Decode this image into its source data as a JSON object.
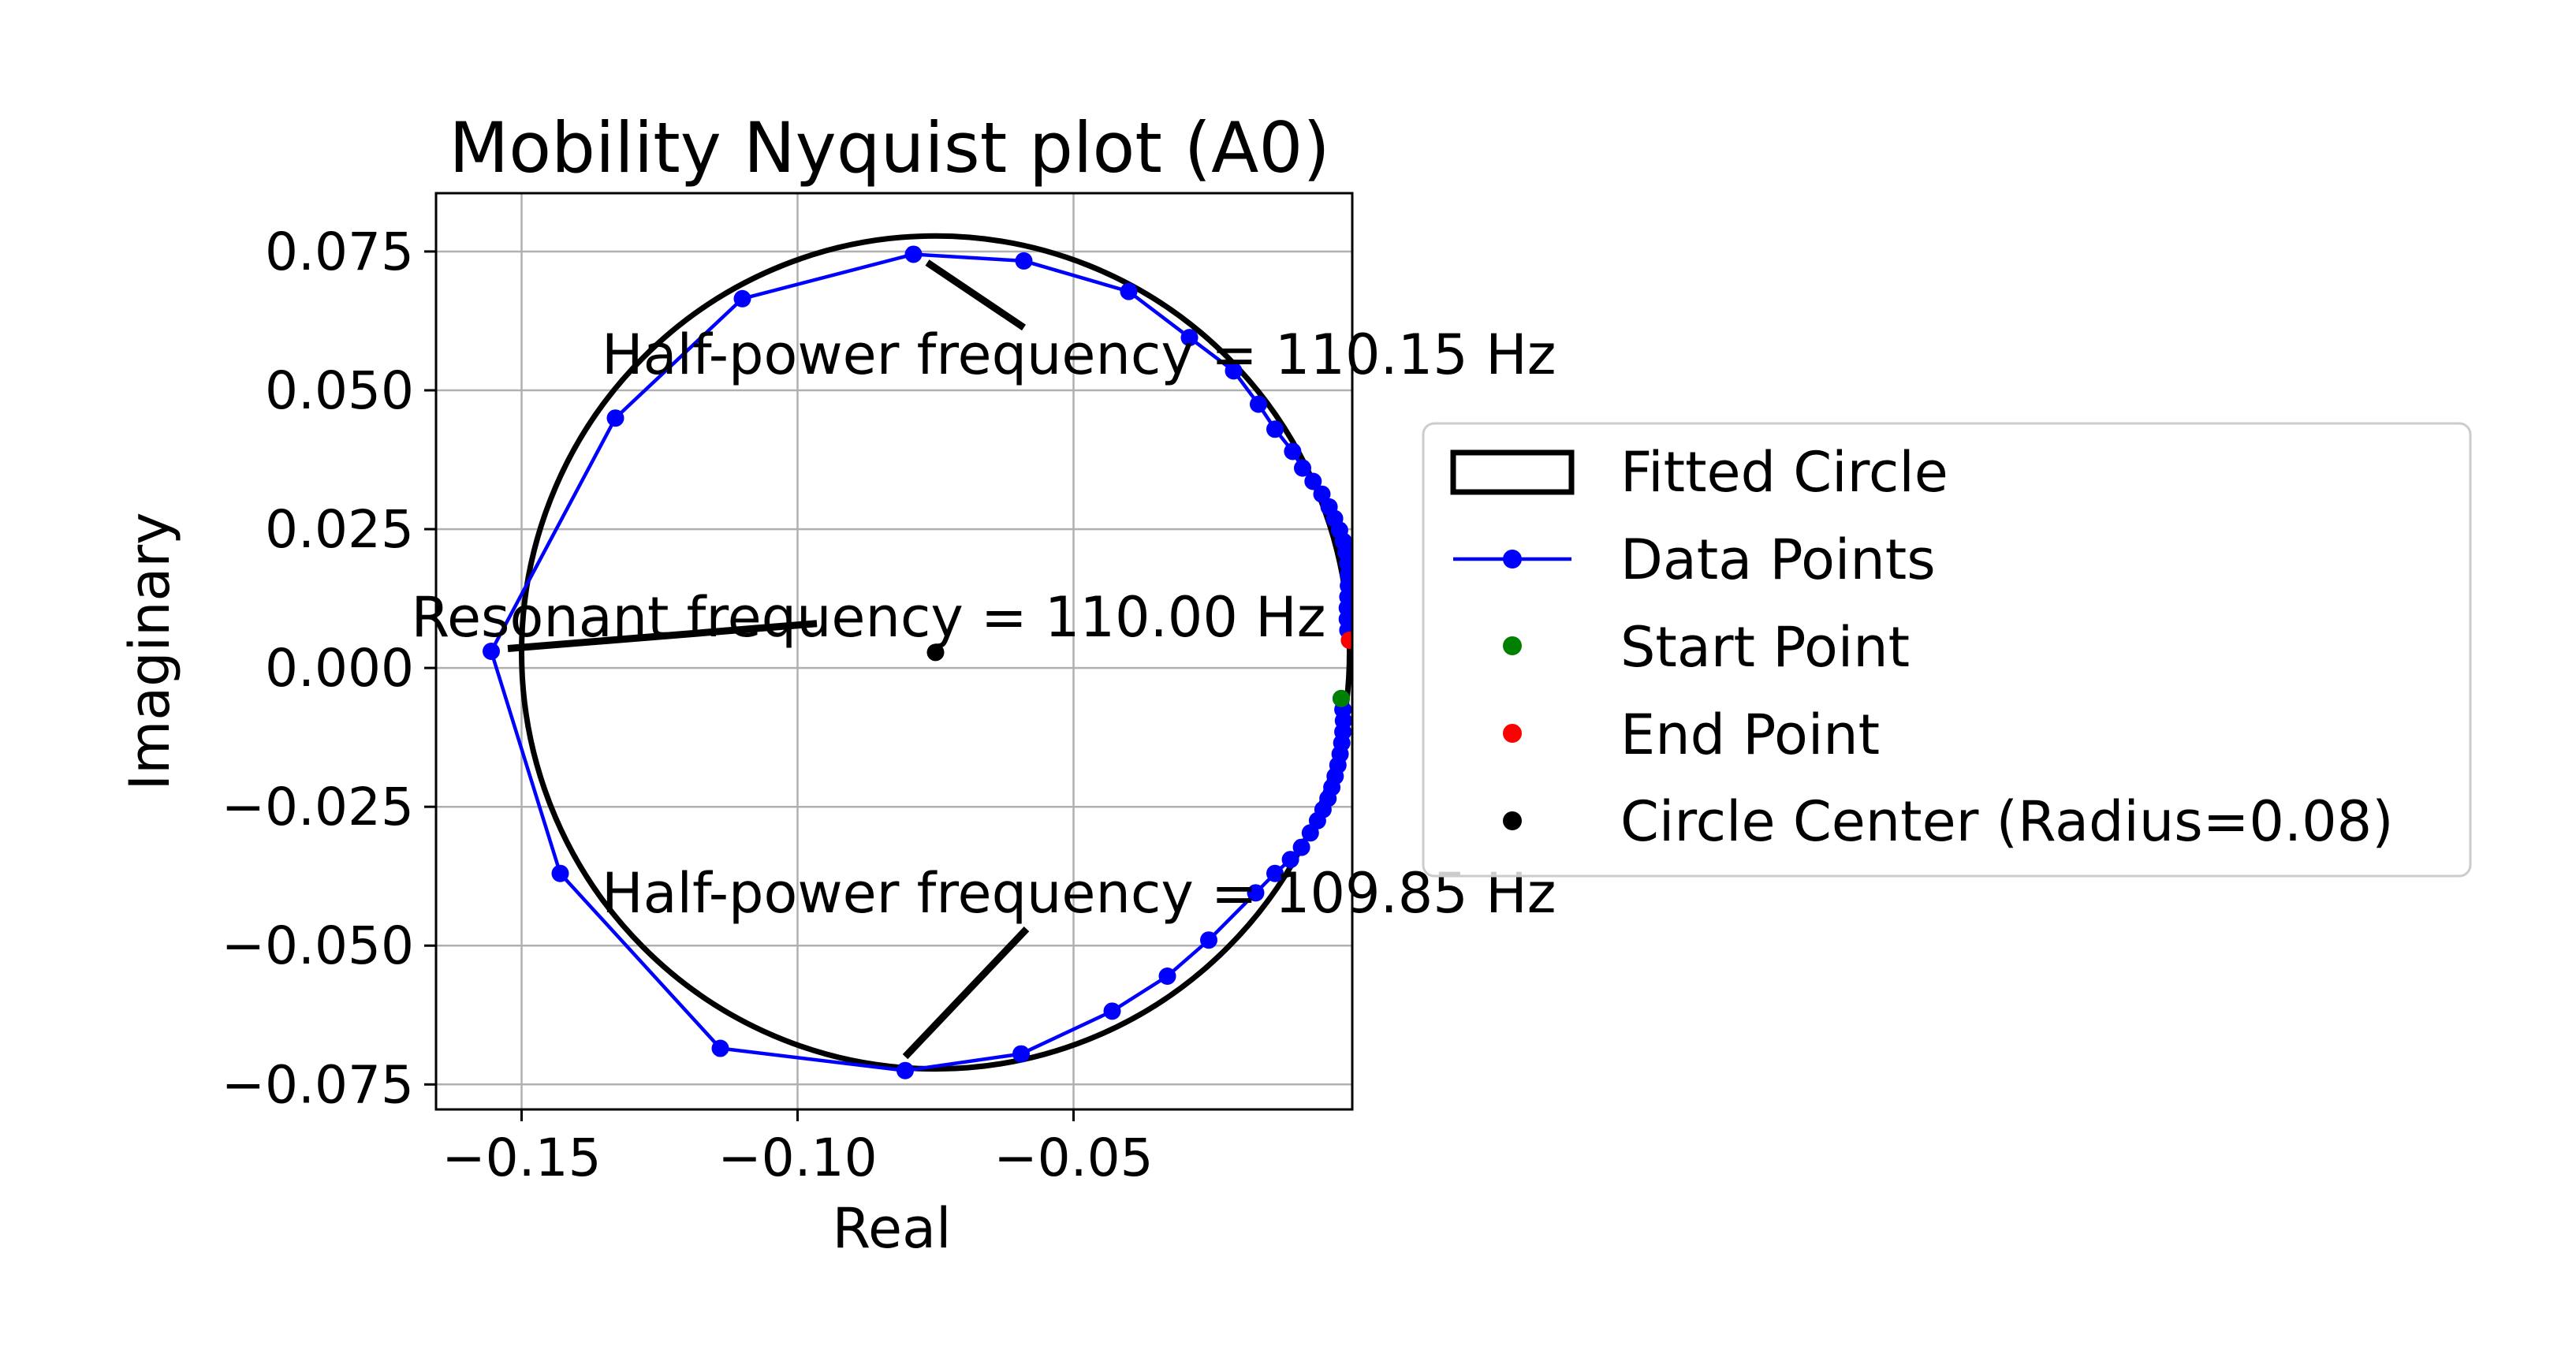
{
  "chart_data": {
    "type": "scatter",
    "title": "Mobility Nyquist plot (A0)",
    "xlabel": "Real",
    "ylabel": "Imaginary",
    "xlim": [
      -0.1655,
      0.0005
    ],
    "ylim": [
      -0.0795,
      0.0855
    ],
    "grid": true,
    "legend_placement": "right, outside plot area",
    "x_ticks": [
      -0.15,
      -0.1,
      -0.05
    ],
    "x_tick_labels": [
      "−0.15",
      "−0.10",
      "−0.05"
    ],
    "y_ticks": [
      0.075,
      0.05,
      0.025,
      0.0,
      -0.025,
      -0.05,
      -0.075
    ],
    "y_tick_labels": [
      "0.075",
      "0.050",
      "0.025",
      "0.000",
      "−0.025",
      "−0.050",
      "−0.075"
    ],
    "fitted_circle": {
      "center": [
        -0.075,
        0.0028
      ],
      "radius": 0.075
    },
    "series": [
      {
        "name": "Data Points",
        "color": "#0000ff",
        "marker": "circle",
        "line": true,
        "points": [
          [
            -0.0015,
            -0.0055
          ],
          [
            -0.0012,
            -0.0075
          ],
          [
            -0.0011,
            -0.0095
          ],
          [
            -0.0012,
            -0.0115
          ],
          [
            -0.0014,
            -0.0135
          ],
          [
            -0.0017,
            -0.0155
          ],
          [
            -0.0021,
            -0.0175
          ],
          [
            -0.0026,
            -0.0195
          ],
          [
            -0.0032,
            -0.0215
          ],
          [
            -0.0039,
            -0.0235
          ],
          [
            -0.0048,
            -0.0255
          ],
          [
            -0.0058,
            -0.0275
          ],
          [
            -0.0071,
            -0.0297
          ],
          [
            -0.0087,
            -0.0323
          ],
          [
            -0.0107,
            -0.0345
          ],
          [
            -0.0135,
            -0.037
          ],
          [
            -0.017,
            -0.0405
          ],
          [
            -0.0255,
            -0.049
          ],
          [
            -0.033,
            -0.0555
          ],
          [
            -0.043,
            -0.0618
          ],
          [
            -0.0595,
            -0.0695
          ],
          [
            -0.0805,
            -0.0725
          ],
          [
            -0.114,
            -0.0685
          ],
          [
            -0.143,
            -0.037
          ],
          [
            -0.1555,
            0.003
          ],
          [
            -0.133,
            0.045
          ],
          [
            -0.11,
            0.0665
          ],
          [
            -0.079,
            0.0745
          ],
          [
            -0.059,
            0.0733
          ],
          [
            -0.04,
            0.0678
          ],
          [
            -0.029,
            0.0595
          ],
          [
            -0.021,
            0.0535
          ],
          [
            -0.0165,
            0.0475
          ],
          [
            -0.0135,
            0.043
          ],
          [
            -0.0103,
            0.039
          ],
          [
            -0.0085,
            0.036
          ],
          [
            -0.0066,
            0.0336
          ],
          [
            -0.005,
            0.0313
          ],
          [
            -0.0037,
            0.029
          ],
          [
            -0.0027,
            0.0269
          ],
          [
            -0.0018,
            0.0248
          ],
          [
            -0.0011,
            0.0228
          ],
          [
            -0.0006,
            0.0208
          ],
          [
            -0.0003,
            0.0188
          ],
          [
            -0.0002,
            0.0168
          ],
          [
            -0.0002,
            0.0148
          ],
          [
            -0.0003,
            0.0128
          ],
          [
            -0.0004,
            0.0108
          ],
          [
            -0.0004,
            0.0088
          ],
          [
            -0.0003,
            0.0068
          ],
          [
            0.0,
            0.005
          ]
        ]
      }
    ],
    "start_point": {
      "x": -0.0015,
      "y": -0.0055,
      "color": "#008000"
    },
    "end_point": {
      "x": 0.0,
      "y": 0.005,
      "color": "#ff0000"
    },
    "circle_center": {
      "x": -0.075,
      "y": 0.0028,
      "color": "#000000"
    },
    "annotations": [
      {
        "text": "Half-power frequency = 110.15 Hz",
        "text_anchor": [
          -0.1355,
          0.053
        ],
        "line_from": [
          -0.059,
          0.0613
        ],
        "line_to": [
          -0.0765,
          0.073
        ]
      },
      {
        "text": "Resonant frequency = 110.00 Hz",
        "text_anchor": [
          -0.17,
          0.0057
        ],
        "line_from": [
          -0.0965,
          0.008
        ],
        "line_to": [
          -0.1525,
          0.0035
        ]
      },
      {
        "text": "Half-power frequency = 109.85 Hz",
        "text_anchor": [
          -0.1355,
          -0.044
        ],
        "line_from": [
          -0.0585,
          -0.047
        ],
        "line_to": [
          -0.0805,
          -0.07
        ]
      }
    ],
    "legend": [
      {
        "label": "Fitted Circle",
        "kind": "patch"
      },
      {
        "label": "Data Points",
        "kind": "line-marker"
      },
      {
        "label": "Start Point",
        "kind": "marker",
        "color": "#008000"
      },
      {
        "label": "End Point",
        "kind": "marker",
        "color": "#ff0000"
      },
      {
        "label": "Circle Center (Radius=0.08)",
        "kind": "marker",
        "color": "#000000"
      }
    ]
  }
}
